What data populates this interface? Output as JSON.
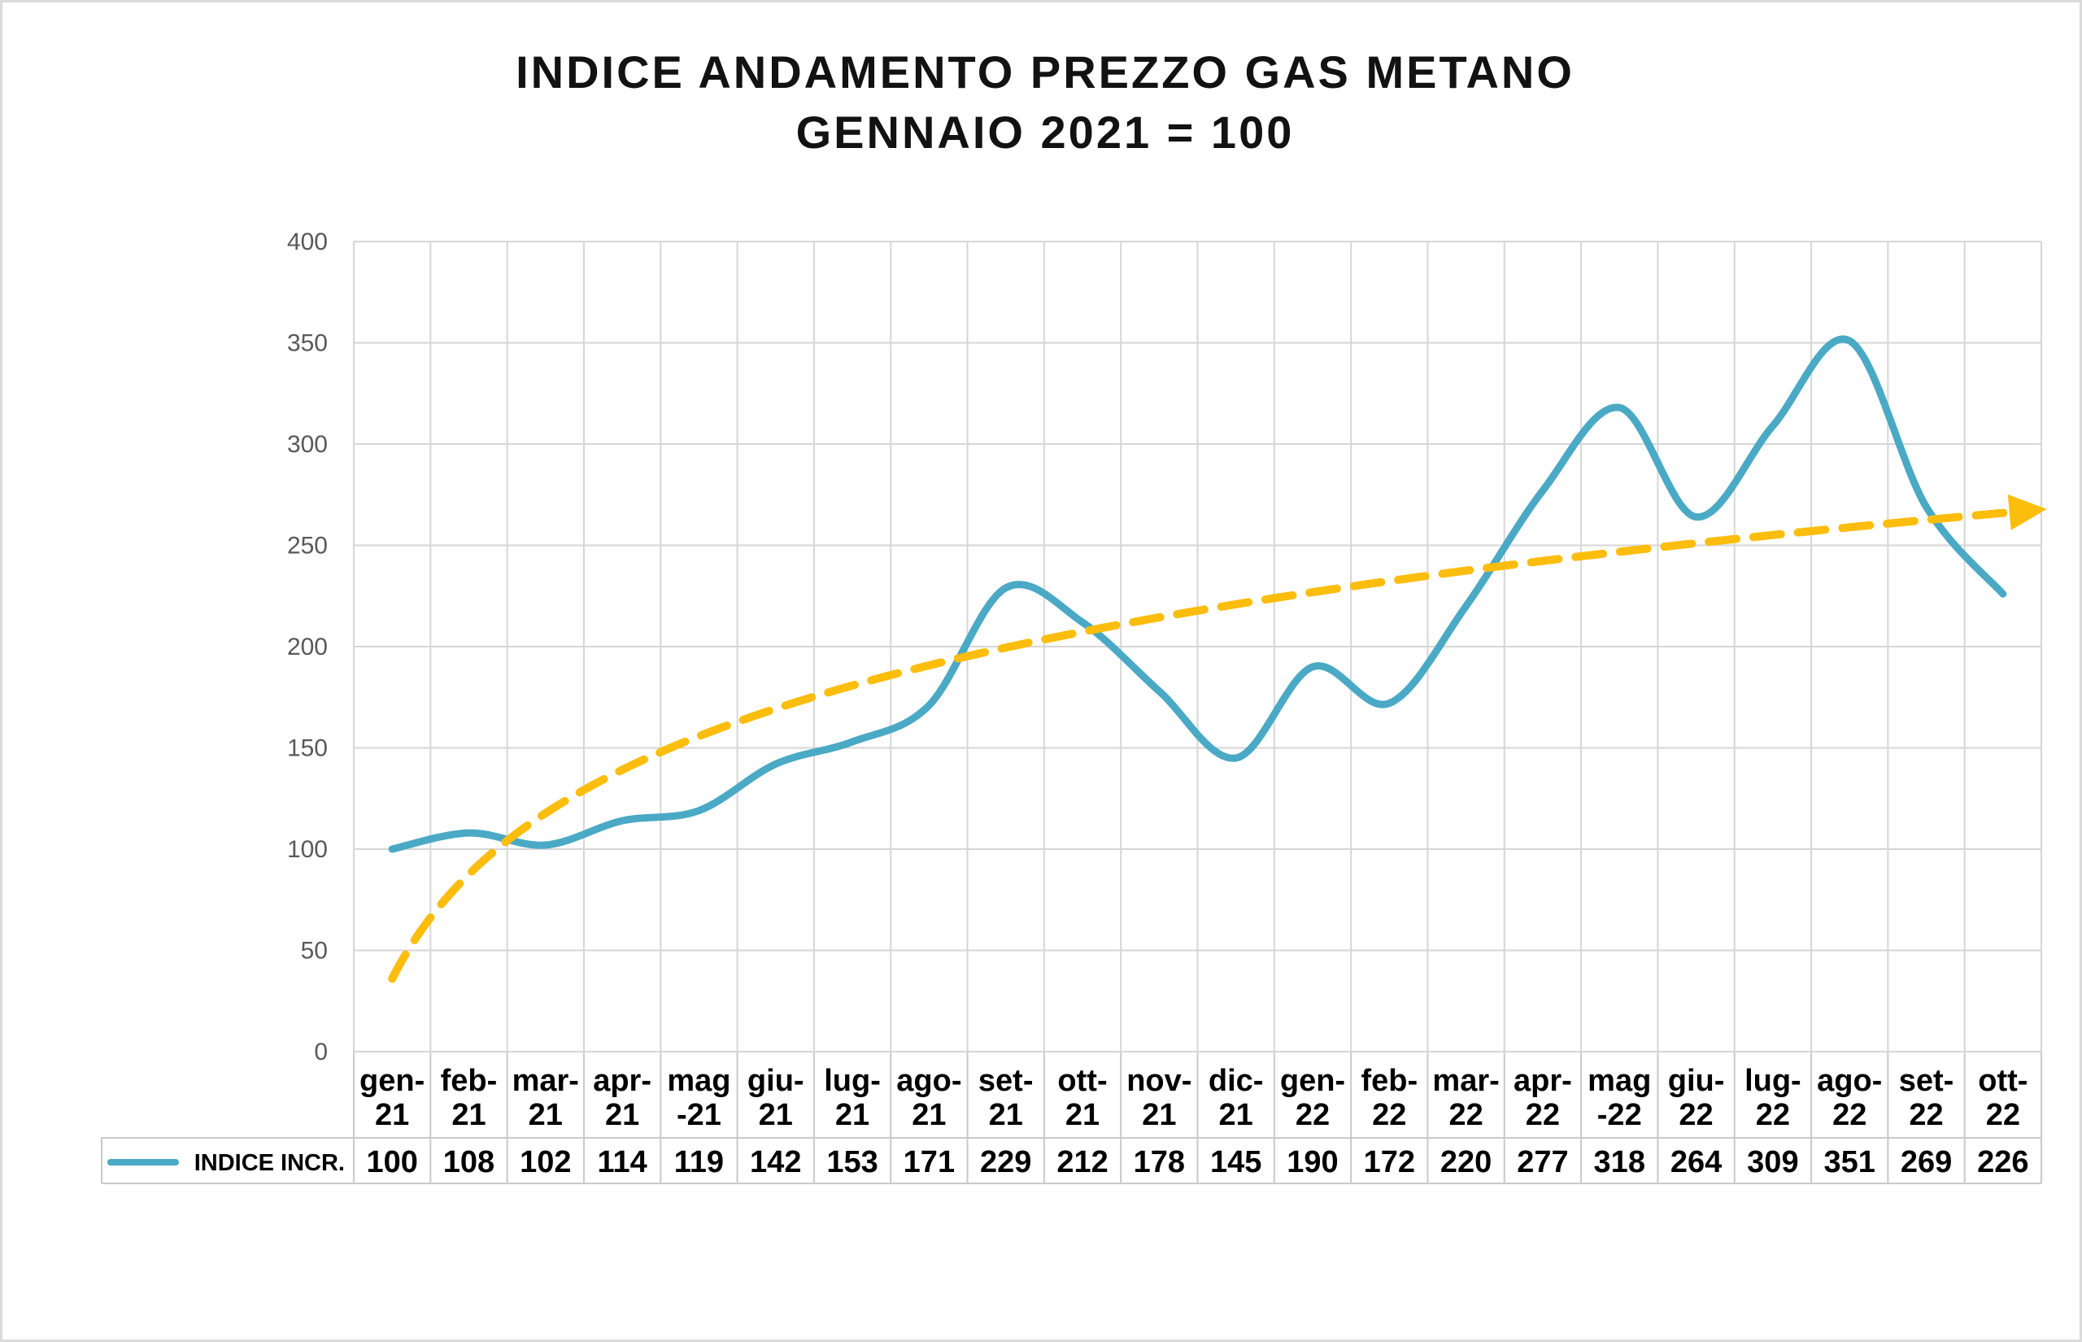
{
  "chart_data": {
    "type": "line",
    "title": "INDICE ANDAMENTO PREZZO GAS METANO",
    "subtitle": "GENNAIO 2021 = 100",
    "categories": [
      "gen-21",
      "feb-21",
      "mar-21",
      "apr-21",
      "mag-21",
      "giu-21",
      "lug-21",
      "ago-21",
      "set-21",
      "ott-21",
      "nov-21",
      "dic-21",
      "gen-22",
      "feb-22",
      "mar-22",
      "apr-22",
      "mag-22",
      "giu-22",
      "lug-22",
      "ago-22",
      "set-22",
      "ott-22"
    ],
    "category_label_lines": [
      [
        "gen-",
        "21"
      ],
      [
        "feb-",
        "21"
      ],
      [
        "mar-",
        "21"
      ],
      [
        "apr-",
        "21"
      ],
      [
        "mag",
        "-21"
      ],
      [
        "giu-",
        "21"
      ],
      [
        "lug-",
        "21"
      ],
      [
        "ago-",
        "21"
      ],
      [
        "set-",
        "21"
      ],
      [
        "ott-",
        "21"
      ],
      [
        "nov-",
        "21"
      ],
      [
        "dic-",
        "21"
      ],
      [
        "gen-",
        "22"
      ],
      [
        "feb-",
        "22"
      ],
      [
        "mar-",
        "22"
      ],
      [
        "apr-",
        "22"
      ],
      [
        "mag",
        "-22"
      ],
      [
        "giu-",
        "22"
      ],
      [
        "lug-",
        "22"
      ],
      [
        "ago-",
        "22"
      ],
      [
        "set-",
        "22"
      ],
      [
        "ott-",
        "22"
      ]
    ],
    "series": [
      {
        "name": "INDICE INCR.",
        "color": "#4AA9C5",
        "line_style": "smooth",
        "values": [
          100,
          108,
          102,
          114,
          119,
          142,
          153,
          171,
          229,
          212,
          178,
          145,
          190,
          172,
          220,
          277,
          318,
          264,
          309,
          351,
          269,
          226
        ]
      }
    ],
    "trendline": {
      "shape": "logarithmic",
      "color": "#FCBD0C",
      "dashed": true,
      "arrow": true,
      "value_at_first_month": 36,
      "value_at_last_month": 266
    },
    "legend_label": "INDICE INCR.",
    "ylim": [
      0,
      400
    ],
    "ytick_step": 50,
    "yticks": [
      0,
      50,
      100,
      150,
      200,
      250,
      300,
      350,
      400
    ],
    "grid": true,
    "legend_position": "table-left"
  },
  "colors": {
    "grid": "#D6D6D6",
    "table_border": "#C9C9C9",
    "axis_text": "#595959",
    "label_text": "#000000",
    "frame_border": "#DBDBDB",
    "background": "#FFFFFF"
  }
}
